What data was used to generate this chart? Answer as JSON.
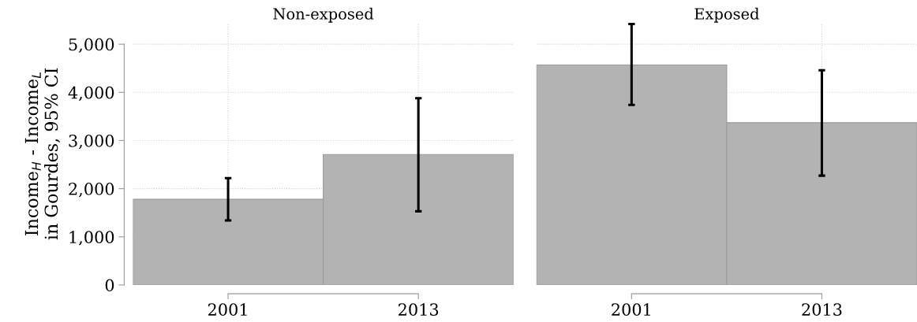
{
  "chart_data": [
    {
      "type": "bar",
      "title": "Non-exposed",
      "ylabel": "Income$_{H}$ - Income$_{L}$\nin Gourdes, 95% CI",
      "categories": [
        "2001",
        "2013"
      ],
      "values": [
        1780,
        2710
      ],
      "color": "#b3b3b3",
      "errors": [
        [
          1340,
          2220
        ],
        [
          1530,
          3880
        ]
      ],
      "ylim": [
        0,
        5450
      ],
      "yticks": [
        {
          "value": 0,
          "label": "0"
        },
        {
          "value": 1000,
          "label": "1,000"
        },
        {
          "value": 2000,
          "label": "2,000"
        },
        {
          "value": 3000,
          "label": "3,000"
        },
        {
          "value": 4000,
          "label": "4,000"
        },
        {
          "value": 5000,
          "label": "5,000"
        }
      ],
      "grid": true
    },
    {
      "type": "bar",
      "title": "Exposed",
      "categories": [
        "2001",
        "2013"
      ],
      "values": [
        4570,
        3370
      ],
      "color": "#b3b3b3",
      "errors": [
        [
          3740,
          5420
        ],
        [
          2270,
          4460
        ]
      ],
      "ylim": [
        0,
        5450
      ],
      "yticks": [
        0,
        1000,
        2000,
        3000,
        4000,
        5000
      ],
      "grid": true,
      "tick_labels": "x"
    }
  ]
}
